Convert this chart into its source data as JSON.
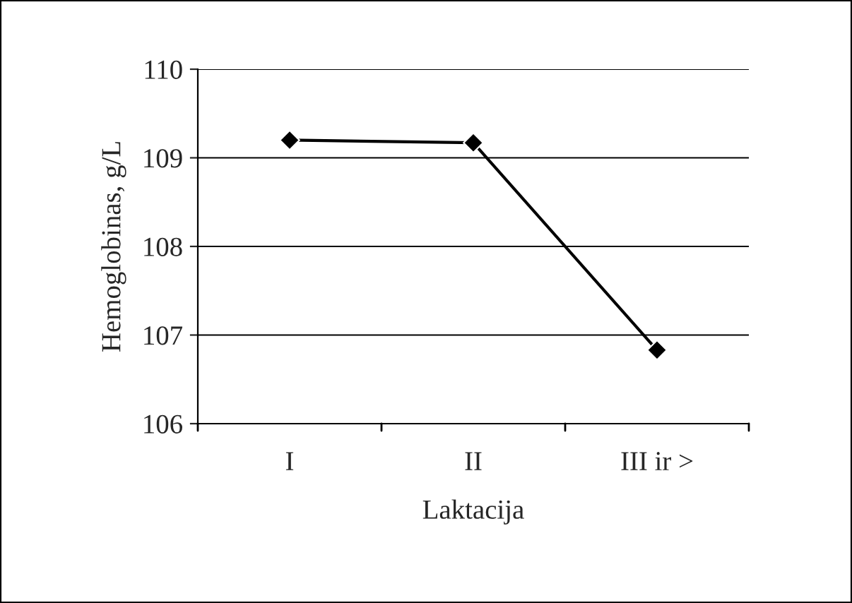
{
  "chart_data": {
    "type": "line",
    "xlabel": "Laktacija",
    "ylabel": "Hemoglobinas, g/L",
    "categories": [
      "I",
      "II",
      "III ir >"
    ],
    "series": [
      {
        "color": "#000000",
        "values": [
          109.2,
          109.17,
          106.83
        ]
      }
    ],
    "ylim": [
      106,
      110
    ],
    "yticks": [
      106,
      107,
      108,
      109,
      110
    ],
    "grid": "y",
    "marker": "diamond",
    "line_style": "solid",
    "legend": false
  }
}
